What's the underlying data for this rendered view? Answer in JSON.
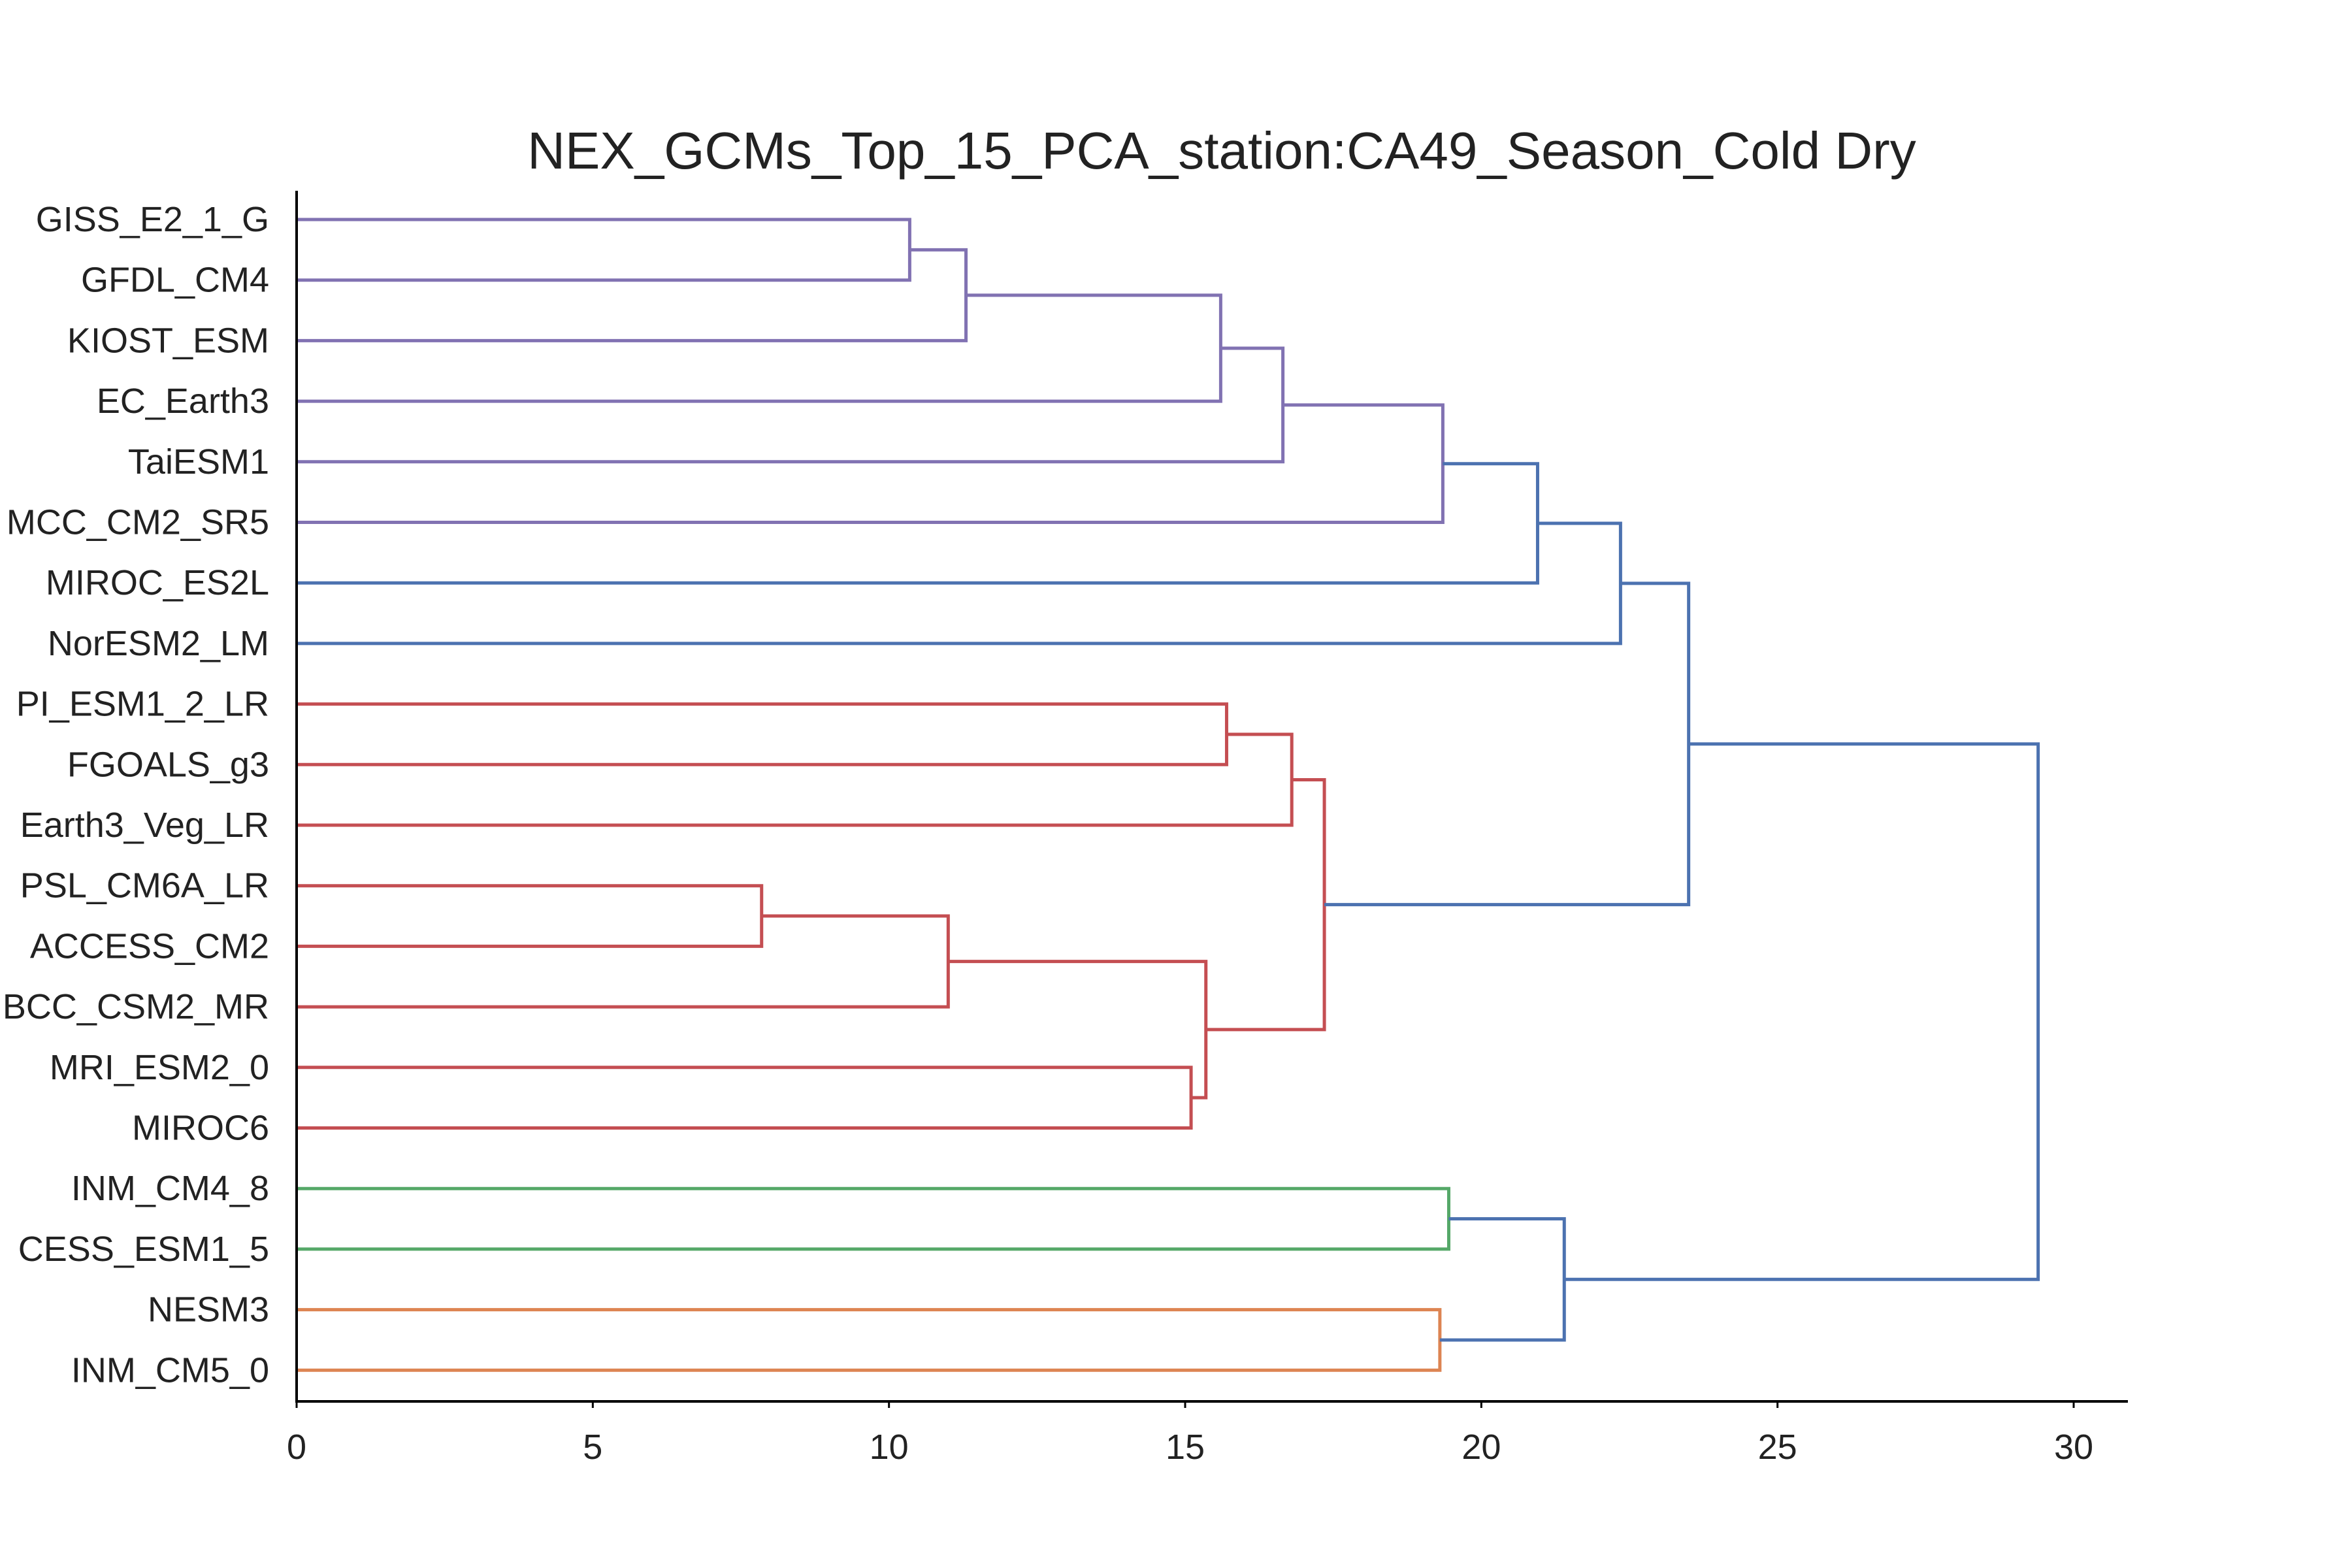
{
  "chart_data": {
    "type": "dendrogram",
    "title": "NEX_GCMs_Top_15_PCA_station:CA49_Season_Cold Dry",
    "xlabel": "",
    "ylabel": "",
    "xlim": [
      0,
      31
    ],
    "x_ticks": [
      0,
      5,
      10,
      15,
      20,
      25,
      30
    ],
    "grid": false,
    "leaves": [
      "GISS_E2_1_G",
      "GFDL_CM4",
      "KIOST_ESM",
      "EC_Earth3",
      "TaiESM1",
      "MCC_CM2_SR5",
      "MIROC_ES2L",
      "NorESM2_LM",
      "PI_ESM1_2_LR",
      "FGOALS_g3",
      "Earth3_Veg_LR",
      "PSL_CM6A_LR",
      "ACCESS_CM2",
      "BCC_CSM2_MR",
      "MRI_ESM2_0",
      "MIROC6",
      "INM_CM4_8",
      "CESS_ESM1_5",
      "NESM3",
      "INM_CM5_0"
    ],
    "colors": {
      "purple": "#8172B2",
      "blue": "#4C72B0",
      "red": "#C44E52",
      "green": "#55A868",
      "orange": "#DD8452"
    },
    "merges": [
      {
        "a": "L0",
        "b": "L1",
        "height": 10.35,
        "color": "purple"
      },
      {
        "a": "M0",
        "b": "L2",
        "height": 11.3,
        "color": "purple"
      },
      {
        "a": "M1",
        "b": "L3",
        "height": 15.6,
        "color": "purple"
      },
      {
        "a": "M2",
        "b": "L4",
        "height": 16.65,
        "color": "purple"
      },
      {
        "a": "M3",
        "b": "L5",
        "height": 19.35,
        "color": "purple"
      },
      {
        "a": "M4",
        "b": "L6",
        "height": 20.95,
        "color": "blue"
      },
      {
        "a": "M5",
        "b": "L7",
        "height": 22.35,
        "color": "blue"
      },
      {
        "a": "L8",
        "b": "L9",
        "height": 15.7,
        "color": "red"
      },
      {
        "a": "M7",
        "b": "L10",
        "height": 16.8,
        "color": "red"
      },
      {
        "a": "L11",
        "b": "L12",
        "height": 7.85,
        "color": "red"
      },
      {
        "a": "M9",
        "b": "L13",
        "height": 11.0,
        "color": "red"
      },
      {
        "a": "L14",
        "b": "L15",
        "height": 15.1,
        "color": "red"
      },
      {
        "a": "M10",
        "b": "M11",
        "height": 15.35,
        "color": "red"
      },
      {
        "a": "M8",
        "b": "M12",
        "height": 17.35,
        "color": "red"
      },
      {
        "a": "M6",
        "b": "M13",
        "height": 23.5,
        "color": "blue"
      },
      {
        "a": "L16",
        "b": "L17",
        "height": 19.45,
        "color": "green"
      },
      {
        "a": "L18",
        "b": "L19",
        "height": 19.3,
        "color": "orange"
      },
      {
        "a": "M15",
        "b": "M16",
        "height": 21.4,
        "color": "blue"
      },
      {
        "a": "M14",
        "b": "M17",
        "height": 29.4,
        "color": "blue"
      }
    ]
  }
}
